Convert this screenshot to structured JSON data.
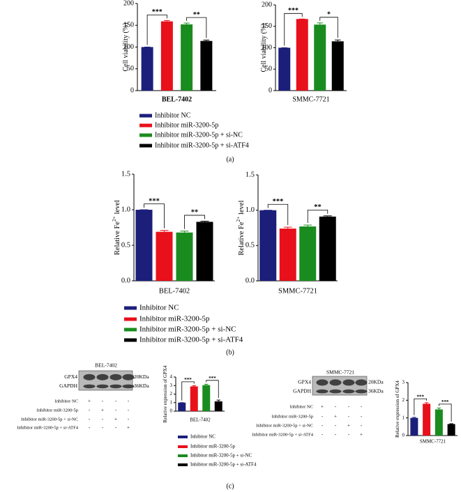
{
  "chart_data": [
    {
      "type": "bar",
      "ylabel": [
        "Cell viability (%)"
      ],
      "xlabel": "BEL-7402",
      "values": [
        100,
        159,
        152,
        114
      ],
      "errors": [
        0,
        2,
        3,
        2
      ],
      "colors": [
        "#1b1f7a",
        "#e8101a",
        "#1a8c1f",
        "#000000"
      ],
      "ylim": [
        0,
        200
      ],
      "yticks": [
        0,
        50,
        100,
        150,
        200
      ],
      "annotations": [
        {
          "text": "***",
          "bars": [
            0,
            1
          ]
        },
        {
          "text": "**",
          "bars": [
            2,
            3
          ]
        }
      ]
    },
    {
      "type": "bar",
      "ylabel": [
        "Cell viability (%)"
      ],
      "xlabel": "SMMC-7721",
      "values": [
        100,
        167,
        154,
        115
      ],
      "errors": [
        0,
        0,
        4,
        3
      ],
      "colors": [
        "#1b1f7a",
        "#e8101a",
        "#1a8c1f",
        "#000000"
      ],
      "ylim": [
        0,
        200
      ],
      "yticks": [
        0,
        50,
        100,
        150,
        200
      ],
      "annotations": [
        {
          "text": "***",
          "bars": [
            0,
            1
          ]
        },
        {
          "text": "*",
          "bars": [
            2,
            3
          ]
        }
      ]
    },
    {
      "type": "bar",
      "ylabel": [
        "Relative Fe",
        "2+",
        " level"
      ],
      "xlabel": "BEL-7402",
      "values": [
        1.0,
        0.69,
        0.68,
        0.83
      ],
      "errors": [
        0,
        0.02,
        0.02,
        0.01
      ],
      "colors": [
        "#1b1f7a",
        "#e8101a",
        "#1a8c1f",
        "#000000"
      ],
      "ylim": [
        0,
        1.5
      ],
      "yticks": [
        {
          "value": 0,
          "label": "0.0"
        },
        0.5,
        {
          "value": 1,
          "label": "1.0"
        },
        1.5
      ],
      "annotations": [
        {
          "text": "***",
          "bars": [
            0,
            1
          ]
        },
        {
          "text": "**",
          "bars": [
            2,
            3
          ]
        }
      ]
    },
    {
      "type": "bar",
      "ylabel": [
        "Relative Fe",
        "2+",
        " level"
      ],
      "xlabel": "SMMC-7721",
      "values": [
        1.0,
        0.74,
        0.77,
        0.91
      ],
      "errors": [
        0,
        0.02,
        0.02,
        0.01
      ],
      "colors": [
        "#1b1f7a",
        "#e8101a",
        "#1a8c1f",
        "#000000"
      ],
      "ylim": [
        0,
        1.5
      ],
      "yticks": [
        {
          "value": 0,
          "label": "0.0"
        },
        0.5,
        {
          "value": 1,
          "label": "1.0"
        },
        1.5
      ],
      "annotations": [
        {
          "text": "***",
          "bars": [
            0,
            1
          ]
        },
        {
          "text": "**",
          "bars": [
            2,
            3
          ]
        }
      ]
    },
    {
      "type": "bar",
      "ylabel": [
        "Relative expression of GPX4"
      ],
      "xlabel": "BEL-7402",
      "values": [
        1.0,
        2.9,
        3.05,
        1.15
      ],
      "errors": [
        0,
        0.08,
        0.1,
        0.15
      ],
      "colors": [
        "#1b1f7a",
        "#e8101a",
        "#1a8c1f",
        "#000000"
      ],
      "ylim": [
        0,
        4
      ],
      "yticks": [
        0,
        1,
        2,
        3,
        4
      ],
      "annotations": [
        {
          "text": "***",
          "bars": [
            0,
            1
          ]
        },
        {
          "text": "***",
          "bars": [
            2,
            3
          ]
        }
      ]
    },
    {
      "type": "bar",
      "ylabel": [
        "Relative expression of GPX4"
      ],
      "xlabel": "SMMC-7721",
      "values": [
        1.0,
        1.8,
        1.48,
        0.65
      ],
      "errors": [
        0.03,
        0.06,
        0.08,
        0.02
      ],
      "colors": [
        "#1b1f7a",
        "#e8101a",
        "#1a8c1f",
        "#000000"
      ],
      "ylim": [
        0,
        3
      ],
      "yticks": [
        0,
        1,
        2,
        3
      ],
      "annotations": [
        {
          "text": "***",
          "bars": [
            0,
            1
          ]
        },
        {
          "text": "***",
          "bars": [
            2,
            3
          ]
        }
      ]
    }
  ],
  "legends": [
    {
      "items": [
        {
          "name": "Inhibitor NC",
          "color": "#1b1f7a"
        },
        {
          "name": "Inhibitor miR-3200-5p",
          "color": "#e8101a"
        },
        {
          "name": "Inhibitor miR-3200-5p + si-NC",
          "color": "#1a8c1f"
        },
        {
          "name": "Inhibitor miR-3200-5p + si-ATF4",
          "color": "#000000"
        }
      ]
    },
    {
      "items": [
        {
          "name": "Inhibitor NC",
          "color": "#1b1f7a"
        },
        {
          "name": "Inhibitor miR-3200-5p",
          "color": "#e8101a"
        },
        {
          "name": "Inhibitor miR-3200-5p + si-NC",
          "color": "#1a8c1f"
        },
        {
          "name": "Inhibitor miR-3200-5p + si-ATF4",
          "color": "#000000"
        }
      ]
    },
    {
      "items": [
        {
          "name": "Inhibitor NC",
          "color": "#1b1f7a"
        },
        {
          "name": "Inhibitor miR-3200-5p",
          "color": "#e8101a"
        },
        {
          "name": "Inhibitor miR-3200-5p + si-NC",
          "color": "#1a8c1f"
        },
        {
          "name": "Inhibitor miR-3200-5p + si-ATF4",
          "color": "#000000"
        }
      ]
    }
  ],
  "panel_labels": [
    "(a)",
    "(b)",
    "(c)"
  ],
  "blots": [
    {
      "title": "BEL-7402",
      "rows": [
        "GPX4",
        "GAPDH"
      ],
      "sizes": [
        "20KDa",
        "36KDa"
      ],
      "conditions": [
        "Inhibitor NC",
        "Inhibitor miR-3200-5p",
        "Inhibitor miR-3200-5p + si-NC",
        "Inhibitor miR-3200-5p + si-ATF4"
      ],
      "signs": [
        [
          "+",
          "-",
          "-",
          "-"
        ],
        [
          "-",
          "+",
          "-",
          "-"
        ],
        [
          "-",
          "-",
          "+",
          "-"
        ],
        [
          "-",
          "-",
          "-",
          "+"
        ]
      ]
    },
    {
      "title": "SMMC-7721",
      "rows": [
        "GPX4",
        "GAPDH"
      ],
      "sizes": [
        "20KDa",
        "36KDa"
      ],
      "conditions": [
        "Inhibitor NC",
        "Inhibitor miR-3200-5p",
        "Inhibitor miR-3200-5p + si-NC",
        "Inhibitor miR-3200-5p + si-ATF4"
      ],
      "signs": [
        [
          "+",
          "-",
          "-",
          "-"
        ],
        [
          "-",
          "+",
          "-",
          "-"
        ],
        [
          "-",
          "-",
          "+",
          "-"
        ],
        [
          "-",
          "-",
          "-",
          "+"
        ]
      ]
    }
  ]
}
